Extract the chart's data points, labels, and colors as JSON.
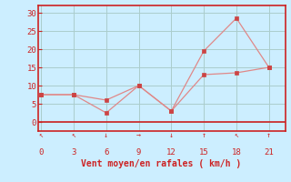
{
  "bg_color": "#cceeff",
  "grid_color": "#aacccc",
  "line1_x": [
    0,
    3,
    6,
    9,
    12,
    15,
    18,
    21
  ],
  "line1_y": [
    7.5,
    7.5,
    6.0,
    10.0,
    3.0,
    13.0,
    13.5,
    15.0
  ],
  "line2_x": [
    0,
    3,
    6,
    9,
    12,
    15,
    18,
    21
  ],
  "line2_y": [
    7.5,
    7.5,
    2.5,
    10.0,
    3.0,
    19.5,
    28.5,
    15.0
  ],
  "line_color": "#e08888",
  "marker_color": "#cc4444",
  "xlabel": "Vent moyen/en rafales ( km/h )",
  "xlabel_color": "#cc2222",
  "xlabel_fontsize": 7,
  "xticks": [
    0,
    3,
    6,
    9,
    12,
    15,
    18,
    21
  ],
  "yticks": [
    0,
    5,
    10,
    15,
    20,
    25,
    30
  ],
  "xlim": [
    -0.3,
    22.5
  ],
  "ylim": [
    -2.5,
    32
  ],
  "tick_color": "#cc2222",
  "axis_color": "#cc2222",
  "arrow_chars": [
    "↖",
    "↖",
    "↓",
    "→",
    "↓",
    "↑",
    "↖",
    "↑"
  ]
}
